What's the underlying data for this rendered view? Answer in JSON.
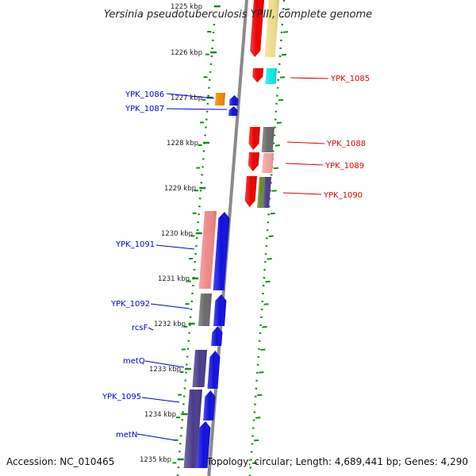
{
  "title": "Yersinia pseudotuberculosis YPIII, complete genome",
  "accession": "Accession: NC_010465",
  "topology": "Topology: circular; Length: 4,689,441 bp; Genes: 4,290",
  "ticks": [
    "1225 kbp",
    "1226 kbp",
    "1227 kbp",
    "1228 kbp",
    "1229 kbp",
    "1230 kbp",
    "1231 kbp",
    "1232 kbp",
    "1233 kbp",
    "1234 kbp",
    "1235 kbp"
  ],
  "colors": {
    "blue": "#1010e0",
    "red": "#ee0000",
    "salmon": "#f08888",
    "gray": "#6a6a6a",
    "purple": "#4a3c8c",
    "orange": "#ee8800",
    "cyan": "#10e8e8",
    "khaki": "#eedd88",
    "olive": "#6a8a2a",
    "lightpink": "#f4a0a0",
    "backbone": "#8a8a8a",
    "dots": "#1a8a1a",
    "label_blue": "#0000cc",
    "label_red": "#dd0000"
  },
  "right_labels": [
    {
      "text": "YPK_1085"
    },
    {
      "text": "YPK_1088"
    },
    {
      "text": "YPK_1089"
    },
    {
      "text": "YPK_1090"
    }
  ],
  "left_labels": [
    {
      "text": "YPK_1086"
    },
    {
      "text": "YPK_1087"
    },
    {
      "text": "YPK_1091"
    },
    {
      "text": "YPK_1092"
    },
    {
      "text": "rcsF"
    },
    {
      "text": "metQ"
    },
    {
      "text": "YPK_1095"
    },
    {
      "text": "metN"
    }
  ]
}
